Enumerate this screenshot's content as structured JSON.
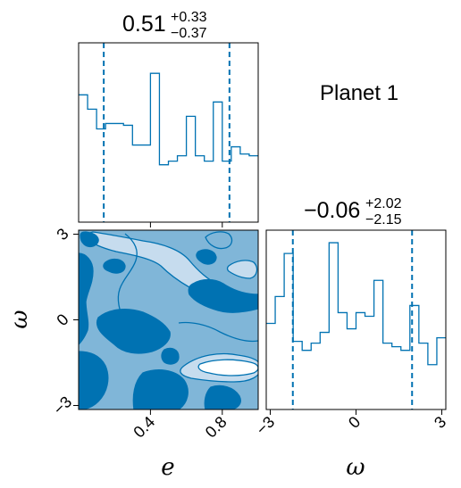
{
  "figure": {
    "annotation": "Planet 1",
    "colors": {
      "line": "#0072b2",
      "level_light": "#c6dcee",
      "level_mid": "#80b6d8",
      "level_dark": "#0072b2",
      "axis": "#000000"
    }
  },
  "chart_data": [
    {
      "type": "histogram",
      "panel": "e-marginal",
      "param": "e",
      "title_value": "0.51",
      "title_plus": "+0.33",
      "title_minus": "−0.37",
      "xlim": [
        0.0,
        1.0
      ],
      "quantiles": [
        0.14,
        0.84
      ],
      "bin_edges": [
        0.0,
        0.05,
        0.1,
        0.15,
        0.2,
        0.25,
        0.3,
        0.35,
        0.4,
        0.45,
        0.5,
        0.55,
        0.6,
        0.65,
        0.7,
        0.75,
        0.8,
        0.85,
        0.9,
        0.95,
        1.0
      ],
      "counts": [
        0.71,
        0.63,
        0.52,
        0.55,
        0.55,
        0.54,
        0.43,
        0.43,
        0.83,
        0.32,
        0.34,
        0.37,
        0.59,
        0.37,
        0.34,
        0.67,
        0.34,
        0.42,
        0.38,
        0.37
      ],
      "ylim": [
        0,
        1.0
      ]
    },
    {
      "type": "histogram",
      "panel": "omega-marginal",
      "param": "ω",
      "title_value": "−0.06",
      "title_plus": "+2.02",
      "title_minus": "−2.15",
      "xlim": [
        -3.14,
        3.14
      ],
      "quantiles": [
        -2.21,
        1.96
      ],
      "bin_edges": [
        -3.14,
        -2.826,
        -2.512,
        -2.198,
        -1.884,
        -1.57,
        -1.256,
        -0.942,
        -0.628,
        -0.314,
        0.0,
        0.314,
        0.628,
        0.942,
        1.256,
        1.57,
        1.884,
        2.198,
        2.512,
        2.826,
        3.14
      ],
      "counts": [
        0.48,
        0.63,
        0.87,
        0.38,
        0.33,
        0.37,
        0.43,
        0.93,
        0.54,
        0.45,
        0.54,
        0.52,
        0.72,
        0.37,
        0.35,
        0.33,
        0.58,
        0.37,
        0.25,
        0.4
      ],
      "ylim": [
        0,
        1.0
      ],
      "xlabel": "ω",
      "xticks": [
        -3,
        0,
        3
      ],
      "xtick_labels": [
        "−3",
        "0",
        "3"
      ]
    },
    {
      "type": "contour",
      "panel": "e-omega-joint",
      "xparam": "e",
      "yparam": "ω",
      "xlim": [
        0.0,
        1.0
      ],
      "ylim": [
        -3.14,
        3.14
      ],
      "xlabel": "e",
      "ylabel": "ω",
      "xticks": [
        0.4,
        0.8
      ],
      "xtick_labels": [
        "0.4",
        "0.8"
      ],
      "yticks": [
        -3,
        0,
        3
      ],
      "ytick_labels": [
        "−3",
        "0",
        "3"
      ],
      "levels": [
        "mid",
        "light",
        "dark"
      ]
    }
  ]
}
